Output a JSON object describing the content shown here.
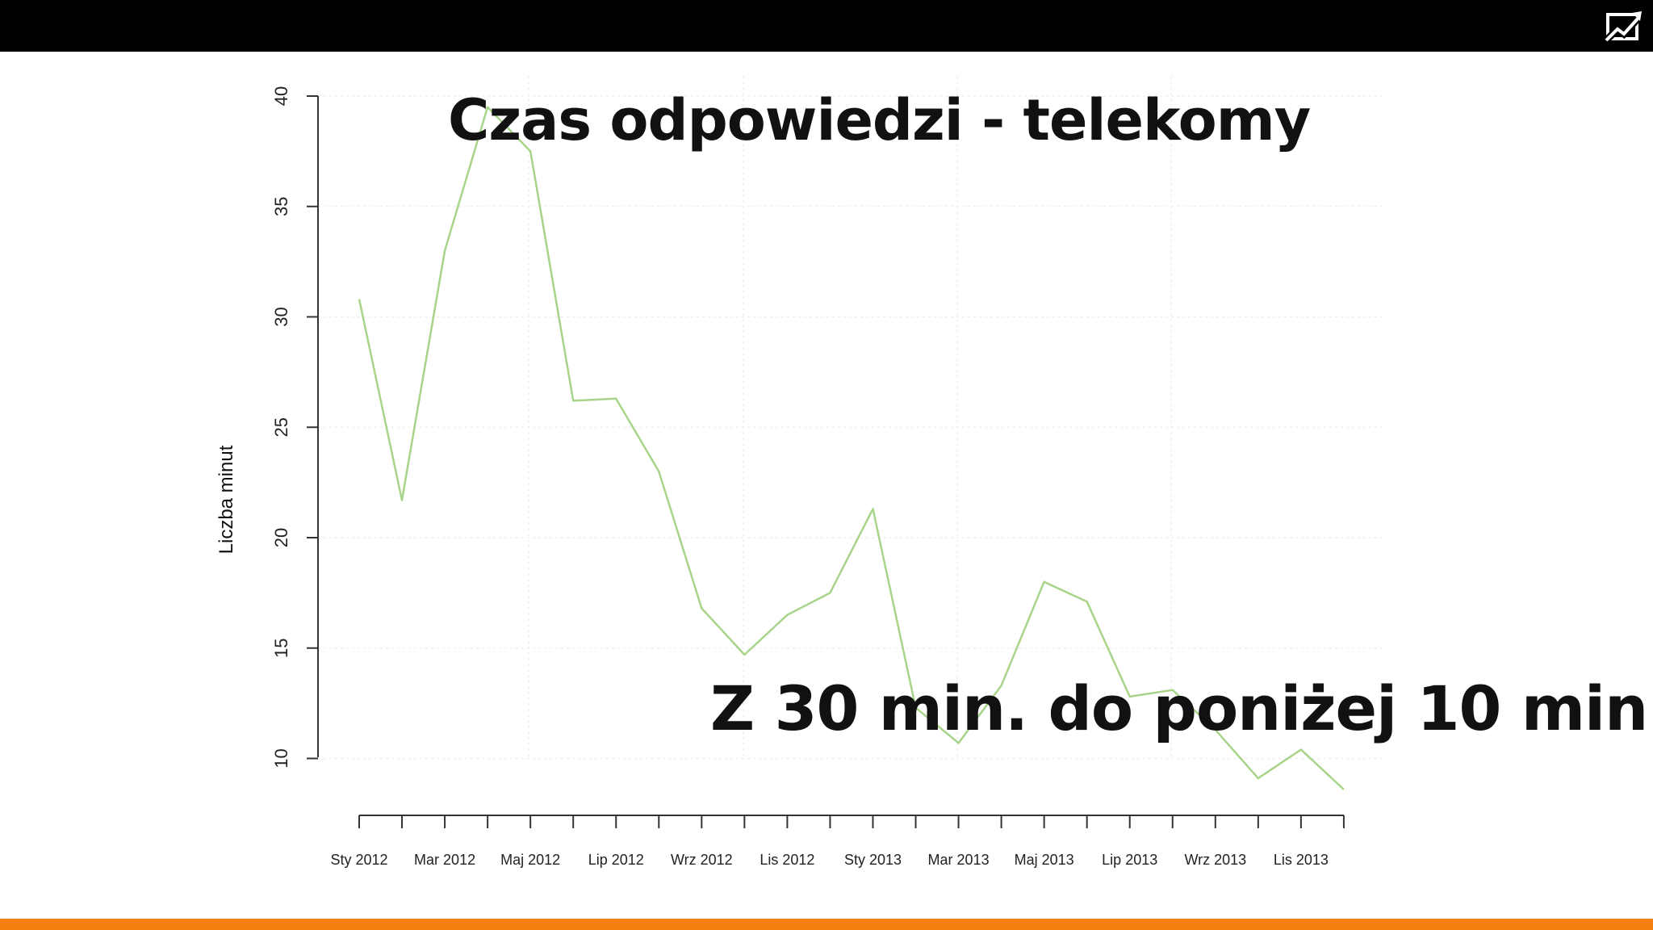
{
  "overlay": {
    "title": "Czas odpowiedzi - telekomy",
    "caption": "Z 30 min. do poniżej 10 min."
  },
  "theme": {
    "top_bar_color": "#000000",
    "bottom_bar_color": "#f5800f",
    "line_color": "#a8d48a"
  },
  "logo": {
    "icon": "chart-trend-icon"
  },
  "chart_data": {
    "type": "line",
    "xlabel": "",
    "ylabel": "Liczba minut",
    "ylim": [
      8.5,
      40
    ],
    "yticks": [
      10,
      15,
      20,
      25,
      30,
      35,
      40
    ],
    "x": [
      "Sty 2012",
      "Lut 2012",
      "Mar 2012",
      "Kwi 2012",
      "Maj 2012",
      "Cze 2012",
      "Lip 2012",
      "Sie 2012",
      "Wrz 2012",
      "Paź 2012",
      "Lis 2012",
      "Gru 2012",
      "Sty 2013",
      "Lut 2013",
      "Mar 2013",
      "Kwi 2013",
      "Maj 2013",
      "Cze 2013",
      "Lip 2013",
      "Sie 2013",
      "Wrz 2013",
      "Paź 2013",
      "Lis 2013",
      "Gru 2013"
    ],
    "xtick_labels": [
      "Sty 2012",
      "Mar 2012",
      "Maj 2012",
      "Lip 2012",
      "Wrz 2012",
      "Lis 2012",
      "Sty 2013",
      "Mar 2013",
      "Maj 2013",
      "Lip 2013",
      "Wrz 2013",
      "Lis 2013"
    ],
    "series": [
      {
        "values": [
          30.8,
          21.7,
          33.0,
          39.5,
          37.5,
          26.2,
          26.3,
          23.0,
          16.8,
          14.7,
          16.5,
          17.5,
          21.3,
          12.3,
          10.7,
          13.3,
          18.0,
          17.1,
          12.8,
          13.1,
          11.3,
          9.1,
          10.4,
          8.6
        ]
      }
    ],
    "grid": true,
    "legend": "none"
  }
}
